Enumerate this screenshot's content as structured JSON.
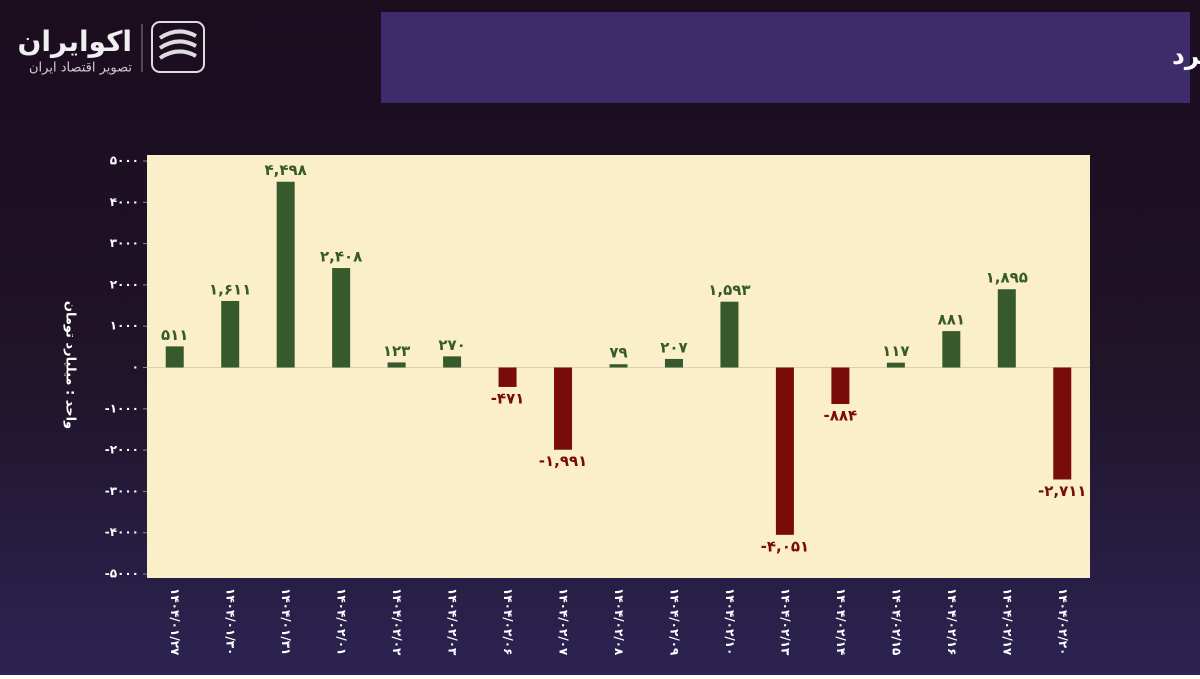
{
  "brand": {
    "name": "اکوایران",
    "tagline": "تصویر اقتصاد ایران"
  },
  "chart_data": {
    "type": "bar",
    "title": "جریان ورود و خروج پول حقیقی از معاملات خرد",
    "y_label": "واحد : میلیارد تومان",
    "categories": [
      "۱۴۰۴/۰۱/۲۷",
      "۱۴۰۴/۰۱/۳۰",
      "۱۴۰۴/۰۱/۳۱",
      "۱۴۰۴/۰۲/۰۱",
      "۱۴۰۴/۰۲/۰۲",
      "۱۴۰۴/۰۲/۰۳",
      "۱۴۰۴/۰۲/۰۶",
      "۱۴۰۴/۰۲/۰۷",
      "۱۴۰۴/۰۲/۰۸",
      "۱۴۰۴/۰۲/۰۹",
      "۱۴۰۴/۰۲/۱۰",
      "۱۴۰۴/۰۲/۱۳",
      "۱۴۰۴/۰۲/۱۴",
      "۱۴۰۴/۰۲/۱۵",
      "۱۴۰۴/۰۲/۱۶",
      "۱۴۰۴/۰۲/۱۷",
      "۱۴۰۴/۰۲/۲۰"
    ],
    "values": [
      511,
      1611,
      4498,
      2408,
      123,
      270,
      -471,
      -1991,
      79,
      207,
      1593,
      -4051,
      -884,
      117,
      881,
      1895,
      -2711
    ],
    "value_labels": [
      "۵۱۱",
      "۱,۶۱۱",
      "۴,۴۹۸",
      "۲,۴۰۸",
      "۱۲۳",
      "۲۷۰",
      "-۴۷۱",
      "-۱,۹۹۱",
      "۷۹",
      "۲۰۷",
      "۱,۵۹۳",
      "-۴,۰۵۱",
      "-۸۸۴",
      "۱۱۷",
      "۸۸۱",
      "۱,۸۹۵",
      "-۲,۷۱۱"
    ],
    "positive_color": "#375a2c",
    "negative_color": "#7a0b0b",
    "ylim": [
      -5000,
      5000
    ],
    "yticks": [
      {
        "value": 5000,
        "label": "۵۰۰۰"
      },
      {
        "value": 4000,
        "label": "۴۰۰۰"
      },
      {
        "value": 3000,
        "label": "۳۰۰۰"
      },
      {
        "value": 2000,
        "label": "۲۰۰۰"
      },
      {
        "value": 1000,
        "label": "۱۰۰۰"
      },
      {
        "value": 0,
        "label": "۰"
      },
      {
        "value": -1000,
        "label": "-۱۰۰۰"
      },
      {
        "value": -2000,
        "label": "-۲۰۰۰"
      },
      {
        "value": -3000,
        "label": "-۳۰۰۰"
      },
      {
        "value": -4000,
        "label": "-۴۰۰۰"
      },
      {
        "value": -5000,
        "label": "-۵۰۰۰"
      }
    ]
  }
}
